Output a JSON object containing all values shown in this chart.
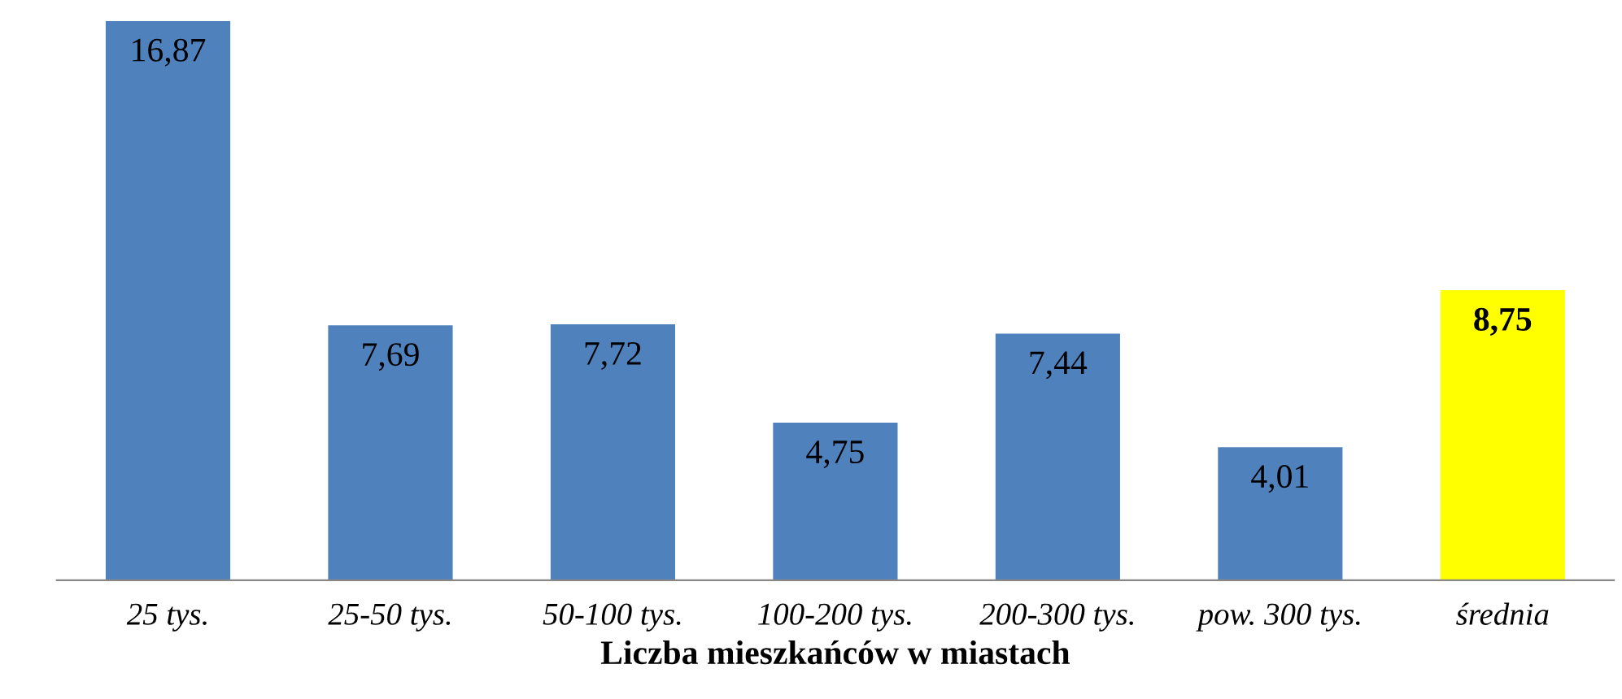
{
  "chart_data": {
    "type": "bar",
    "xlabel": "Liczba mieszkańców w miastach",
    "categories": [
      "25 tys.",
      "25-50 tys.",
      "50-100 tys.",
      "100-200 tys.",
      "200-300 tys.",
      "pow. 300 tys.",
      "średnia"
    ],
    "values": [
      16.87,
      7.69,
      7.72,
      4.75,
      7.44,
      4.01,
      8.75
    ],
    "colors": [
      "#4f81bd",
      "#4f81bd",
      "#4f81bd",
      "#4f81bd",
      "#4f81bd",
      "#4f81bd",
      "#ffff00"
    ],
    "value_labels": [
      "16,87",
      "7,69",
      "7,72",
      "4,75",
      "7,44",
      "4,01",
      "8,75"
    ],
    "grid": false,
    "legend": false
  }
}
